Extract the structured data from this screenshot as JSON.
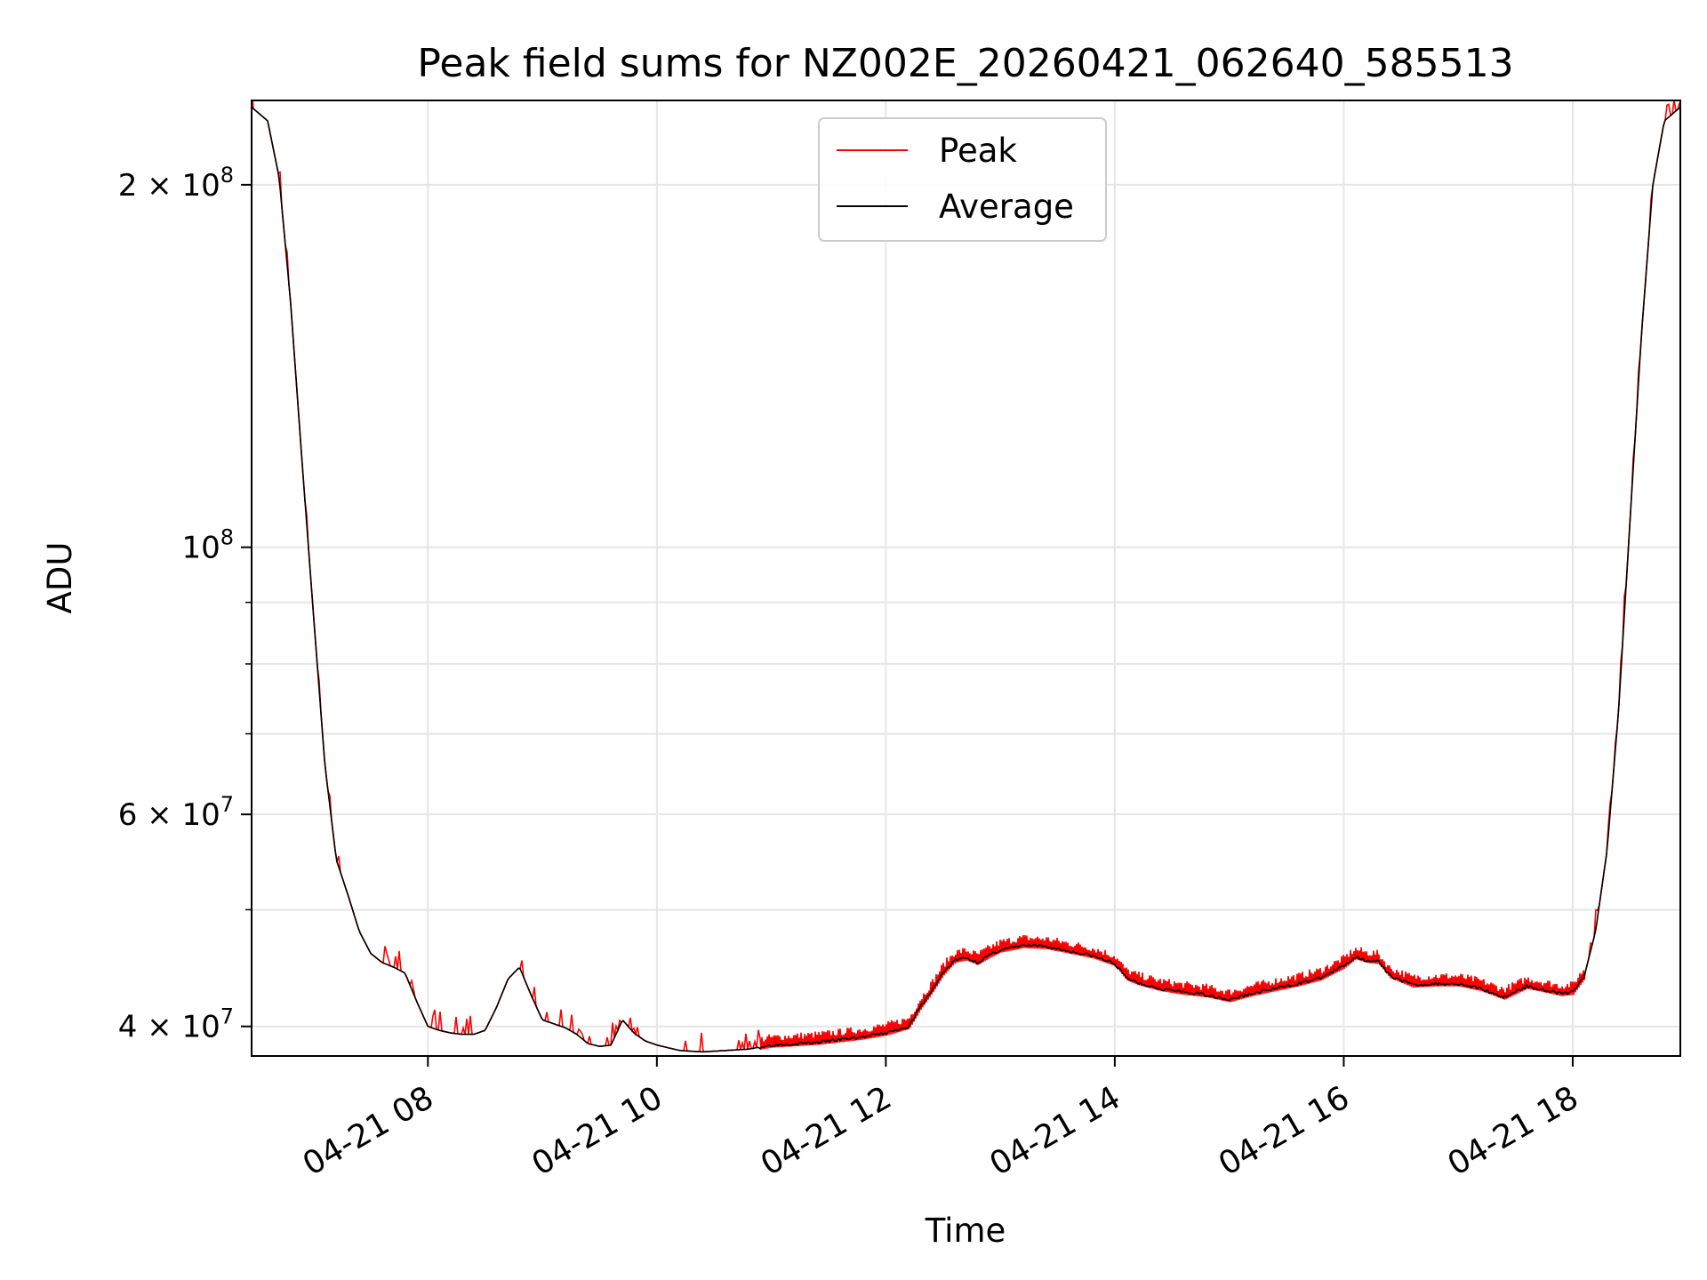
{
  "chart_data": {
    "type": "line",
    "title": "Peak field sums for NZ002E_20260421_062640_585513",
    "xlabel": "Time",
    "ylabel": "ADU",
    "yscale": "log",
    "x_unit": "hours since 2026-04-21 00:00",
    "xlim": [
      6.46,
      18.94
    ],
    "ylim": [
      37800000,
      235000000
    ],
    "grid": true,
    "legend_position": "upper center",
    "x_ticks": [
      {
        "value": 8,
        "label": "04-21 08"
      },
      {
        "value": 10,
        "label": "04-21 10"
      },
      {
        "value": 12,
        "label": "04-21 12"
      },
      {
        "value": 14,
        "label": "04-21 14"
      },
      {
        "value": 16,
        "label": "04-21 16"
      },
      {
        "value": 18,
        "label": "04-21 18"
      }
    ],
    "y_ticks": [
      {
        "value": 40000000,
        "mantissa": "4",
        "exponent": "7"
      },
      {
        "value": 60000000,
        "mantissa": "6",
        "exponent": "7"
      },
      {
        "value": 100000000,
        "mantissa": "",
        "exponent": "8"
      },
      {
        "value": 200000000,
        "mantissa": "2",
        "exponent": "8"
      }
    ],
    "y_minor_ticks": [
      50000000,
      70000000,
      80000000,
      90000000
    ],
    "series": [
      {
        "name": "Peak",
        "color": "#ff0000",
        "spike_amplitude_fraction": 0.022
      },
      {
        "name": "Average",
        "color": "#000000",
        "x": [
          6.46,
          6.6,
          6.7,
          6.8,
          6.9,
          7.0,
          7.1,
          7.2,
          7.3,
          7.4,
          7.5,
          7.6,
          7.7,
          7.8,
          7.9,
          8.0,
          8.1,
          8.2,
          8.3,
          8.4,
          8.5,
          8.6,
          8.7,
          8.8,
          8.9,
          9.0,
          9.1,
          9.2,
          9.3,
          9.4,
          9.5,
          9.6,
          9.7,
          9.8,
          9.9,
          10.0,
          10.2,
          10.4,
          10.6,
          10.8,
          11.0,
          11.2,
          11.4,
          11.6,
          11.8,
          12.0,
          12.2,
          12.3,
          12.4,
          12.5,
          12.6,
          12.7,
          12.8,
          12.9,
          13.0,
          13.2,
          13.4,
          13.6,
          13.8,
          14.0,
          14.1,
          14.2,
          14.4,
          14.6,
          14.8,
          15.0,
          15.2,
          15.4,
          15.6,
          15.8,
          16.0,
          16.1,
          16.2,
          16.3,
          16.4,
          16.6,
          16.8,
          17.0,
          17.2,
          17.4,
          17.6,
          17.8,
          17.9,
          18.0,
          18.1,
          18.2,
          18.3,
          18.4,
          18.5,
          18.6,
          18.7,
          18.8,
          18.94
        ],
        "values": [
          232000000,
          226000000,
          203000000,
          160000000,
          118000000,
          88000000,
          66000000,
          55000000,
          51500000,
          48000000,
          46000000,
          45200000,
          44800000,
          44300000,
          42000000,
          40000000,
          39700000,
          39500000,
          39400000,
          39400000,
          39700000,
          41500000,
          43800000,
          44800000,
          42500000,
          40500000,
          40200000,
          39900000,
          39400000,
          38700000,
          38500000,
          38600000,
          40500000,
          39500000,
          38900000,
          38600000,
          38200000,
          38100000,
          38200000,
          38300000,
          38600000,
          38700000,
          38800000,
          39000000,
          39200000,
          39500000,
          40000000,
          41500000,
          42800000,
          44300000,
          45400000,
          45600000,
          45200000,
          45800000,
          46300000,
          46700000,
          46600000,
          46200000,
          45800000,
          45100000,
          43900000,
          43500000,
          43000000,
          42700000,
          42500000,
          42100000,
          42600000,
          43000000,
          43400000,
          43900000,
          44900000,
          45700000,
          45400000,
          45300000,
          44100000,
          43300000,
          43400000,
          43400000,
          43000000,
          42300000,
          43200000,
          42800000,
          42600000,
          42700000,
          44000000,
          48000000,
          56000000,
          73000000,
          105000000,
          150000000,
          200000000,
          226000000,
          232000000
        ]
      }
    ]
  }
}
